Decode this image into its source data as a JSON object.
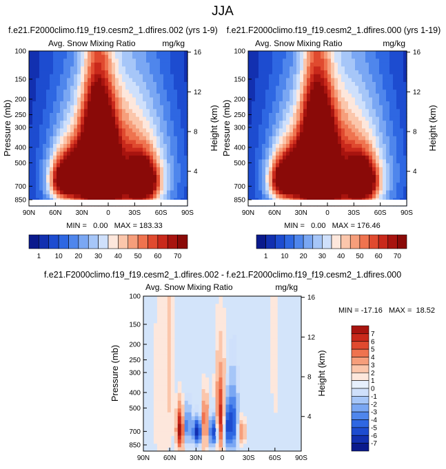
{
  "page_title": "JJA",
  "colors": {
    "top_scale": [
      "#0a1a8c",
      "#1230b0",
      "#1d4cd0",
      "#2e67e2",
      "#4f86ec",
      "#7aa7f3",
      "#a6c6f8",
      "#cfe0fb",
      "#fde7dc",
      "#fbc6ab",
      "#f69e7b",
      "#ef734f",
      "#e04a2f",
      "#c9291b",
      "#a8140f",
      "#8a0a08"
    ],
    "diff_scale": [
      "#0a1a8c",
      "#1230b0",
      "#1d4cd0",
      "#2e67e2",
      "#4f86ec",
      "#7aa7f3",
      "#a6c6f8",
      "#cfe0fb",
      "#e6f0fd",
      "#fde7dc",
      "#fbc6ab",
      "#f69e7b",
      "#ef734f",
      "#e04a2f",
      "#c9291b",
      "#a8140f"
    ],
    "background_top": "#0a1a8c",
    "background_diff": "#d3e4fa"
  },
  "chart_data": [
    {
      "type": "heatmap",
      "id": "left",
      "title": "f.e21.F2000climo.f19_f19.cesm2_1.dfires.002 (yrs 1-9)",
      "left_label": "Avg. Snow Mixing Ratio",
      "right_label": "mg/kg",
      "ylabel": "Pressure (mb)",
      "y2label": "Height (km)",
      "x_ticks": [
        "90N",
        "60N",
        "30N",
        "0",
        "30S",
        "60S",
        "90S"
      ],
      "y_ticks": [
        "100",
        "150",
        "200",
        "250",
        "300",
        "400",
        "500",
        "700",
        "850"
      ],
      "y2_ticks": [
        "16",
        "12",
        "8",
        "4"
      ],
      "stats": "MIN =   0.00   MAX = 183.33",
      "colorbar_labels": [
        "1",
        "10",
        "20",
        "30",
        "40",
        "50",
        "60",
        "70"
      ],
      "blobs": [
        {
          "lat": 12,
          "p": 450,
          "sx": 12,
          "sy": 260,
          "v": 15
        },
        {
          "lat": -3,
          "p": 560,
          "sx": 6,
          "sy": 150,
          "v": 6
        },
        {
          "lat": 40,
          "p": 600,
          "sx": 14,
          "sy": 150,
          "v": 10
        },
        {
          "lat": 55,
          "p": 650,
          "sx": 10,
          "sy": 120,
          "v": 6
        },
        {
          "lat": -40,
          "p": 650,
          "sx": 12,
          "sy": 140,
          "v": 12
        },
        {
          "lat": -8,
          "p": 560,
          "sx": 45,
          "sy": 380,
          "v": 7
        },
        {
          "lat": 0,
          "p": 500,
          "sx": 60,
          "sy": 600,
          "v": 4
        }
      ]
    },
    {
      "type": "heatmap",
      "id": "right",
      "title": "f.e21.F2000climo.f19_f19.cesm2_1.dfires.000 (yrs 1-19)",
      "left_label": "Avg. Snow Mixing Ratio",
      "right_label": "mg/kg",
      "ylabel": "Pressure (mb)",
      "y2label": "Height (km)",
      "x_ticks": [
        "90N",
        "60N",
        "30N",
        "0",
        "30S",
        "60S",
        "90S"
      ],
      "y_ticks": [
        "100",
        "150",
        "200",
        "250",
        "300",
        "400",
        "500",
        "700",
        "850"
      ],
      "y2_ticks": [
        "16",
        "12",
        "8",
        "4"
      ],
      "stats": "MIN =   0.00   MAX = 176.46",
      "colorbar_labels": [
        "1",
        "10",
        "20",
        "30",
        "40",
        "50",
        "60",
        "70"
      ],
      "blobs": [
        {
          "lat": 12,
          "p": 450,
          "sx": 12,
          "sy": 260,
          "v": 14.5
        },
        {
          "lat": -3,
          "p": 560,
          "sx": 6,
          "sy": 150,
          "v": 6
        },
        {
          "lat": 40,
          "p": 600,
          "sx": 14,
          "sy": 150,
          "v": 10
        },
        {
          "lat": 55,
          "p": 650,
          "sx": 10,
          "sy": 120,
          "v": 6
        },
        {
          "lat": -40,
          "p": 650,
          "sx": 12,
          "sy": 140,
          "v": 12
        },
        {
          "lat": -8,
          "p": 560,
          "sx": 45,
          "sy": 380,
          "v": 7
        },
        {
          "lat": 0,
          "p": 500,
          "sx": 60,
          "sy": 600,
          "v": 4
        }
      ]
    },
    {
      "type": "heatmap",
      "id": "diff",
      "title": "f.e21.F2000climo.f19_f19.cesm2_1.dfires.002 - f.e21.F2000climo.f19_f19.cesm2_1.dfires.000",
      "left_label": "Avg. Snow Mixing Ratio",
      "right_label": "mg/kg",
      "ylabel": "Pressure (mb)",
      "y2label": "Height (km)",
      "x_ticks": [
        "90N",
        "60N",
        "30N",
        "0",
        "30S",
        "60S",
        "90S"
      ],
      "y_ticks": [
        "100",
        "150",
        "200",
        "250",
        "300",
        "400",
        "500",
        "700",
        "850"
      ],
      "y2_ticks": [
        "16",
        "12",
        "8",
        "4"
      ],
      "stats": "MIN = -17.16   MAX =  18.52",
      "colorbar_labels": [
        "7",
        "6",
        "5",
        "4",
        "3",
        "2",
        "1",
        "0",
        "-1",
        "-2",
        "-3",
        "-4",
        "-5",
        "-6",
        "-7"
      ],
      "blobs": [
        {
          "lat": 48,
          "p": 680,
          "sx": 3,
          "sy": 140,
          "v": 7
        },
        {
          "lat": 40,
          "p": 640,
          "sx": 3,
          "sy": 120,
          "v": -4
        },
        {
          "lat": 28,
          "p": 700,
          "sx": 4,
          "sy": 90,
          "v": -7
        },
        {
          "lat": 20,
          "p": 650,
          "sx": 3,
          "sy": 160,
          "v": 5
        },
        {
          "lat": 10,
          "p": 700,
          "sx": 4,
          "sy": 110,
          "v": -6
        },
        {
          "lat": 2,
          "p": 580,
          "sx": 4,
          "sy": 220,
          "v": 6
        },
        {
          "lat": -5,
          "p": 650,
          "sx": 3,
          "sy": 150,
          "v": -5
        },
        {
          "lat": -12,
          "p": 620,
          "sx": 4,
          "sy": 200,
          "v": -5
        },
        {
          "lat": -22,
          "p": 700,
          "sx": 3,
          "sy": 90,
          "v": 3
        },
        {
          "lat": 60,
          "p": 250,
          "sx": 3,
          "sy": 300,
          "v": 1
        },
        {
          "lat": -60,
          "p": 200,
          "sx": 3,
          "sy": 250,
          "v": 1
        },
        {
          "lat": 70,
          "p": 500,
          "sx": 8,
          "sy": 400,
          "v": 0.8
        }
      ]
    }
  ]
}
